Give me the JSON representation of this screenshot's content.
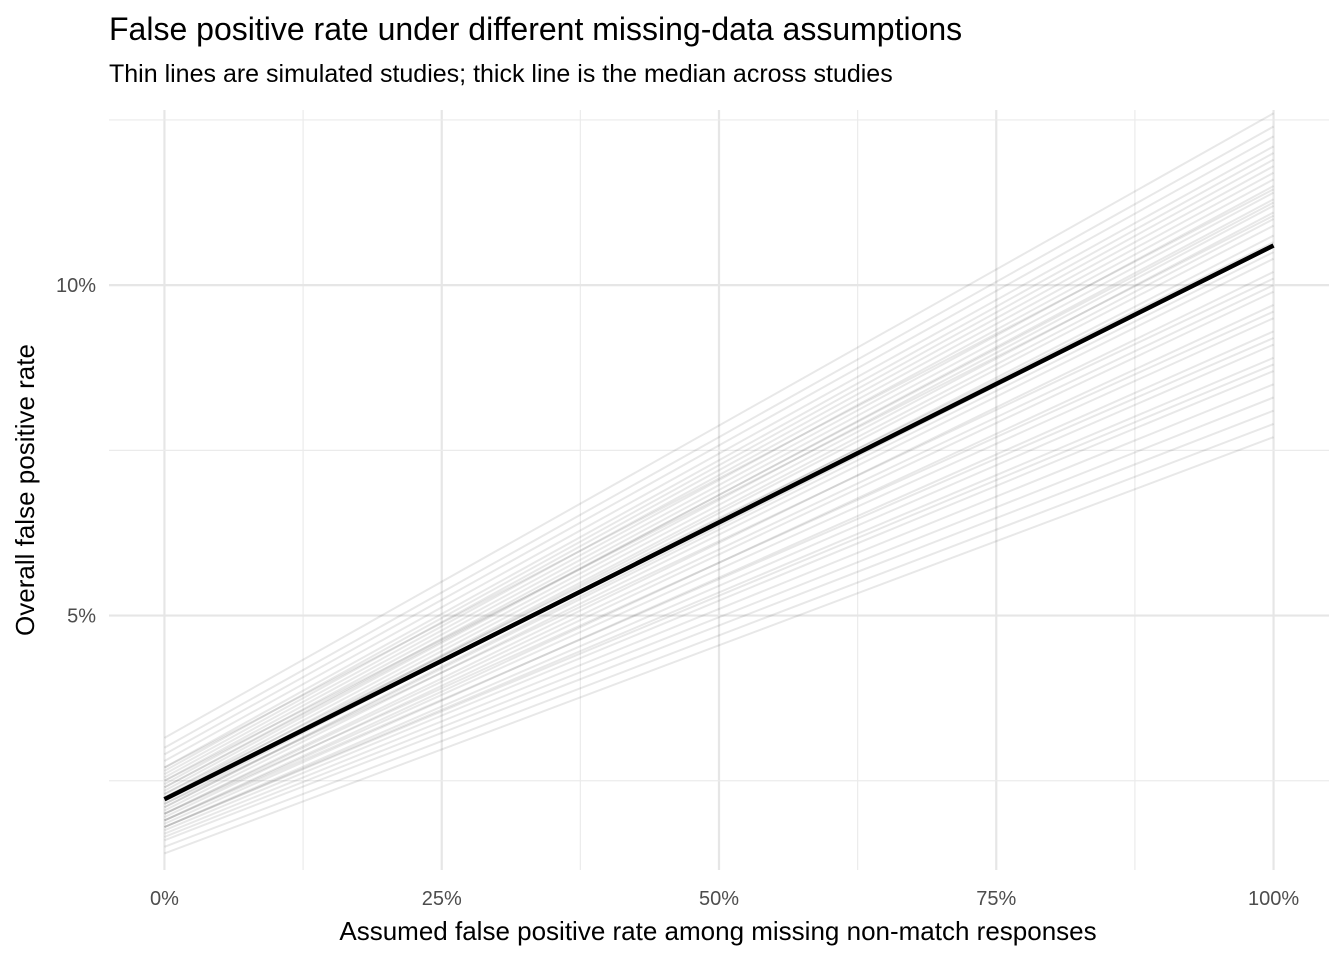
{
  "chart_data": {
    "type": "line",
    "title": "False positive rate under different missing-data assumptions",
    "subtitle": "Thin lines are simulated studies; thick line is the median across studies",
    "xlabel": "Assumed false positive rate among missing non-match responses",
    "ylabel": "Overall false positive rate",
    "x_ticks": [
      0,
      0.25,
      0.5,
      0.75,
      1.0
    ],
    "x_tick_labels": [
      "0%",
      "25%",
      "50%",
      "75%",
      "100%"
    ],
    "y_ticks": [
      0.05,
      0.1
    ],
    "y_tick_labels": [
      "5%",
      "10%"
    ],
    "xlim": [
      -0.05,
      1.05
    ],
    "ylim": [
      0.0115,
      0.1265
    ],
    "grid": true,
    "legend": "none",
    "median_series": {
      "name": "Median across studies",
      "x": [
        0,
        1
      ],
      "y": [
        0.0222,
        0.106
      ]
    },
    "simulated_studies": {
      "name": "Simulated studies",
      "x": [
        0,
        1
      ],
      "starts": [
        0.014,
        0.015,
        0.016,
        0.0165,
        0.017,
        0.0175,
        0.018,
        0.018,
        0.0185,
        0.019,
        0.019,
        0.0195,
        0.02,
        0.02,
        0.0205,
        0.021,
        0.021,
        0.0215,
        0.022,
        0.022,
        0.0225,
        0.023,
        0.0235,
        0.024,
        0.0245,
        0.025,
        0.0255,
        0.026,
        0.0265,
        0.027,
        0.028,
        0.029,
        0.03,
        0.0315,
        0.018,
        0.02,
        0.023,
        0.025,
        0.027,
        0.019,
        0.0215,
        0.024
      ],
      "ends": [
        0.077,
        0.079,
        0.081,
        0.083,
        0.085,
        0.087,
        0.089,
        0.091,
        0.093,
        0.095,
        0.097,
        0.099,
        0.1,
        0.102,
        0.104,
        0.105,
        0.106,
        0.1075,
        0.109,
        0.11,
        0.111,
        0.112,
        0.113,
        0.114,
        0.115,
        0.116,
        0.117,
        0.118,
        0.119,
        0.12,
        0.121,
        0.1225,
        0.124,
        0.126,
        0.088,
        0.096,
        0.1065,
        0.1105,
        0.1145,
        0.092,
        0.101,
        0.1125
      ]
    }
  }
}
